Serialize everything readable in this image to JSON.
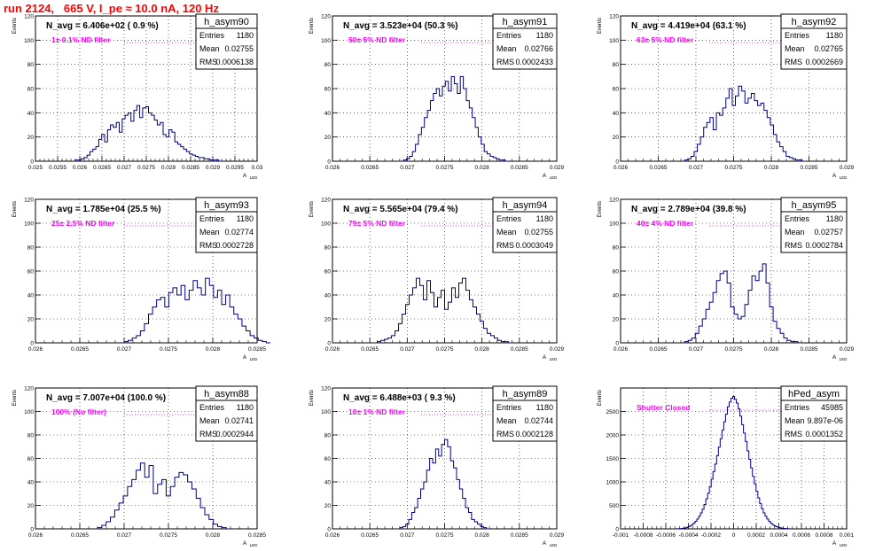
{
  "page_title": "run 2124,   665 V, I_pe ≈ 10.0 nA, 120 Hz",
  "y_axis_label": "Events",
  "x_axis_label": "A",
  "x_axis_subscript": "LED",
  "colors": {
    "title": "#ff0000",
    "note": "#ff00ff",
    "hist": "#000080",
    "grid": "#000000"
  },
  "stat_labels": {
    "entries": "Entries",
    "mean": "Mean",
    "rms": "RMS"
  },
  "chart_data": [
    {
      "type": "histogram",
      "name": "h_asym90",
      "navg": "N_avg = 6.406e+02 ( 0.9 %)",
      "note": "1± 0.1% ND filter",
      "entries": "1180",
      "mean": "0.02755",
      "rms": "0.0006138",
      "xlim": [
        0.025,
        0.03
      ],
      "ylim": [
        0,
        120
      ],
      "xticks": [
        "0.025",
        "0.0255",
        "0.026",
        "0.0265",
        "0.027",
        "0.0275",
        "0.028",
        "0.0285",
        "0.029",
        "0.0295",
        "0.03"
      ],
      "yticks": [
        "0",
        "20",
        "40",
        "60",
        "80",
        "100",
        "120"
      ],
      "bins": {
        "x0": 0.0259,
        "x1": 0.0292,
        "counts": [
          1,
          1,
          2,
          3,
          5,
          8,
          10,
          12,
          18,
          22,
          16,
          26,
          30,
          28,
          32,
          24,
          35,
          38,
          40,
          33,
          42,
          46,
          36,
          44,
          45,
          40,
          38,
          34,
          30,
          32,
          22,
          20,
          26,
          24,
          16,
          14,
          12,
          10,
          8,
          6,
          5,
          4,
          3,
          3,
          2,
          2,
          1,
          1,
          1,
          0
        ]
      }
    },
    {
      "type": "histogram",
      "name": "h_asym91",
      "navg": "N_avg = 3.523e+04 (50.3 %)",
      "note": "50± 5% ND filter",
      "entries": "1180",
      "mean": "0.02766",
      "rms": "0.0002433",
      "xlim": [
        0.026,
        0.029
      ],
      "ylim": [
        0,
        120
      ],
      "xticks": [
        "0.026",
        "0.0265",
        "0.027",
        "0.0275",
        "0.028",
        "0.0285",
        "0.029"
      ],
      "yticks": [
        "0",
        "20",
        "40",
        "60",
        "80",
        "100",
        "120"
      ],
      "bins": {
        "x0": 0.02695,
        "x1": 0.02835,
        "counts": [
          1,
          2,
          4,
          8,
          14,
          22,
          28,
          36,
          42,
          50,
          56,
          60,
          54,
          62,
          66,
          58,
          70,
          64,
          56,
          70,
          60,
          50,
          44,
          36,
          28,
          20,
          14,
          8,
          6,
          4,
          3,
          2,
          1,
          1,
          0
        ]
      }
    },
    {
      "type": "histogram",
      "name": "h_asym92",
      "navg": "N_avg = 4.419e+04 (63.1 %)",
      "note": "63± 5% ND filter",
      "entries": "1180",
      "mean": "0.02765",
      "rms": "0.0002669",
      "xlim": [
        0.026,
        0.029
      ],
      "ylim": [
        0,
        120
      ],
      "xticks": [
        "0.026",
        "0.0265",
        "0.027",
        "0.0275",
        "0.028",
        "0.0285",
        "0.029"
      ],
      "yticks": [
        "0",
        "20",
        "40",
        "60",
        "80",
        "100",
        "120"
      ],
      "bins": {
        "x0": 0.02685,
        "x1": 0.02845,
        "counts": [
          1,
          2,
          4,
          8,
          14,
          20,
          28,
          32,
          36,
          26,
          40,
          38,
          44,
          52,
          60,
          46,
          54,
          62,
          58,
          48,
          52,
          56,
          50,
          46,
          48,
          42,
          36,
          30,
          22,
          16,
          12,
          8,
          4,
          3,
          2,
          1,
          1,
          0
        ]
      }
    },
    {
      "type": "histogram",
      "name": "h_asym93",
      "navg": "N_avg = 1.785e+04 (25.5 %)",
      "note": "25± 2.5% ND filter",
      "entries": "1180",
      "mean": "0.02774",
      "rms": "0.0002728",
      "xlim": [
        0.026,
        0.0285
      ],
      "ylim": [
        0,
        120
      ],
      "xticks": [
        "0.026",
        "0.0265",
        "0.027",
        "0.0275",
        "0.028",
        "0.0285"
      ],
      "yticks": [
        "0",
        "20",
        "40",
        "60",
        "80",
        "100",
        "120"
      ],
      "bins": {
        "x0": 0.027,
        "x1": 0.02865,
        "counts": [
          1,
          2,
          4,
          6,
          10,
          16,
          24,
          30,
          36,
          38,
          30,
          42,
          46,
          40,
          48,
          36,
          44,
          52,
          46,
          40,
          54,
          48,
          38,
          44,
          32,
          40,
          30,
          24,
          20,
          14,
          10,
          6,
          4,
          2,
          1,
          0
        ]
      }
    },
    {
      "type": "histogram",
      "name": "h_asym94",
      "navg": "N_avg = 5.565e+04 (79.4 %)",
      "note": "79± 5% ND filter",
      "entries": "1180",
      "mean": "0.02755",
      "rms": "0.0003049",
      "xlim": [
        0.026,
        0.029
      ],
      "ylim": [
        0,
        120
      ],
      "xticks": [
        "0.026",
        "0.0265",
        "0.027",
        "0.0275",
        "0.028",
        "0.0285",
        "0.029"
      ],
      "yticks": [
        "0",
        "20",
        "40",
        "60",
        "80",
        "100",
        "120"
      ],
      "bins": {
        "x0": 0.0266,
        "x1": 0.0284,
        "counts": [
          1,
          2,
          3,
          4,
          6,
          10,
          16,
          24,
          32,
          40,
          46,
          54,
          48,
          36,
          52,
          42,
          30,
          38,
          44,
          28,
          34,
          46,
          38,
          50,
          54,
          44,
          36,
          30,
          24,
          18,
          12,
          8,
          6,
          4,
          2,
          1,
          1,
          0
        ]
      }
    },
    {
      "type": "histogram",
      "name": "h_asym95",
      "navg": "N_avg = 2.789e+04 (39.8 %)",
      "note": "40± 4% ND filter",
      "entries": "1180",
      "mean": "0.02757",
      "rms": "0.0002784",
      "xlim": [
        0.026,
        0.029
      ],
      "ylim": [
        0,
        120
      ],
      "xticks": [
        "0.026",
        "0.0265",
        "0.027",
        "0.0275",
        "0.028",
        "0.0285",
        "0.029"
      ],
      "yticks": [
        "0",
        "20",
        "40",
        "60",
        "80",
        "100",
        "120"
      ],
      "bins": {
        "x0": 0.02685,
        "x1": 0.0284,
        "counts": [
          1,
          2,
          4,
          8,
          14,
          20,
          28,
          34,
          42,
          52,
          58,
          60,
          50,
          30,
          24,
          20,
          22,
          32,
          44,
          56,
          52,
          60,
          66,
          50,
          30,
          18,
          12,
          8,
          4,
          2,
          1,
          1,
          0
        ]
      }
    },
    {
      "type": "histogram",
      "name": "h_asym88",
      "navg": "N_avg = 7.007e+04 (100.0 %)",
      "note": "100% (No filter)",
      "entries": "1180",
      "mean": "0.02741",
      "rms": "0.0002944",
      "xlim": [
        0.026,
        0.0285
      ],
      "ylim": [
        0,
        120
      ],
      "xticks": [
        "0.026",
        "0.0265",
        "0.027",
        "0.0275",
        "0.028",
        "0.0285"
      ],
      "yticks": [
        "0",
        "20",
        "40",
        "60",
        "80",
        "100",
        "120"
      ],
      "bins": {
        "x0": 0.0267,
        "x1": 0.0282,
        "counts": [
          1,
          3,
          6,
          10,
          16,
          22,
          28,
          36,
          42,
          50,
          56,
          44,
          54,
          30,
          38,
          42,
          28,
          36,
          44,
          48,
          46,
          40,
          34,
          26,
          18,
          12,
          8,
          4,
          2,
          1,
          0
        ]
      }
    },
    {
      "type": "histogram",
      "name": "h_asym89",
      "navg": "N_avg = 6.488e+03 ( 9.3 %)",
      "note": "10± 1% ND filter",
      "entries": "1180",
      "mean": "0.02744",
      "rms": "0.0002128",
      "xlim": [
        0.026,
        0.029
      ],
      "ylim": [
        0,
        120
      ],
      "xticks": [
        "0.026",
        "0.0265",
        "0.027",
        "0.0275",
        "0.028",
        "0.0285",
        "0.029"
      ],
      "yticks": [
        "0",
        "20",
        "40",
        "60",
        "80",
        "100",
        "120"
      ],
      "bins": {
        "x0": 0.0269,
        "x1": 0.0281,
        "counts": [
          1,
          2,
          4,
          8,
          14,
          18,
          26,
          34,
          40,
          50,
          60,
          56,
          68,
          62,
          72,
          76,
          70,
          58,
          52,
          42,
          34,
          26,
          18,
          14,
          8,
          6,
          4,
          2,
          1,
          0
        ]
      }
    },
    {
      "type": "histogram",
      "name": "hPed_asym",
      "navg": "",
      "note": "Shutter Closed",
      "entries": "45985",
      "mean": "9.897e-06",
      "rms": "0.0001352",
      "xlim": [
        -0.001,
        0.001
      ],
      "ylim": [
        0,
        3000
      ],
      "xticks": [
        "-0.001",
        "-0.0008",
        "-0.0006",
        "-0.0004",
        "-0.0002",
        "0",
        "0.0002",
        "0.0004",
        "0.0006",
        "0.0008",
        "0.001"
      ],
      "yticks": [
        "0",
        "500",
        "1000",
        "1500",
        "2000",
        "2500"
      ],
      "bins": {
        "x0": -0.0005,
        "x1": 0.0005,
        "counts": [
          2,
          4,
          8,
          12,
          20,
          30,
          44,
          62,
          90,
          120,
          160,
          210,
          270,
          340,
          420,
          520,
          640,
          760,
          900,
          1060,
          1220,
          1380,
          1560,
          1740,
          1920,
          2100,
          2280,
          2440,
          2600,
          2700,
          2780,
          2820,
          2760,
          2680,
          2560,
          2400,
          2220,
          2040,
          1860,
          1660,
          1480,
          1300,
          1120,
          960,
          800,
          660,
          540,
          430,
          340,
          270,
          210,
          160,
          120,
          90,
          66,
          48,
          34,
          24,
          16,
          10,
          6,
          4,
          2
        ]
      }
    }
  ]
}
